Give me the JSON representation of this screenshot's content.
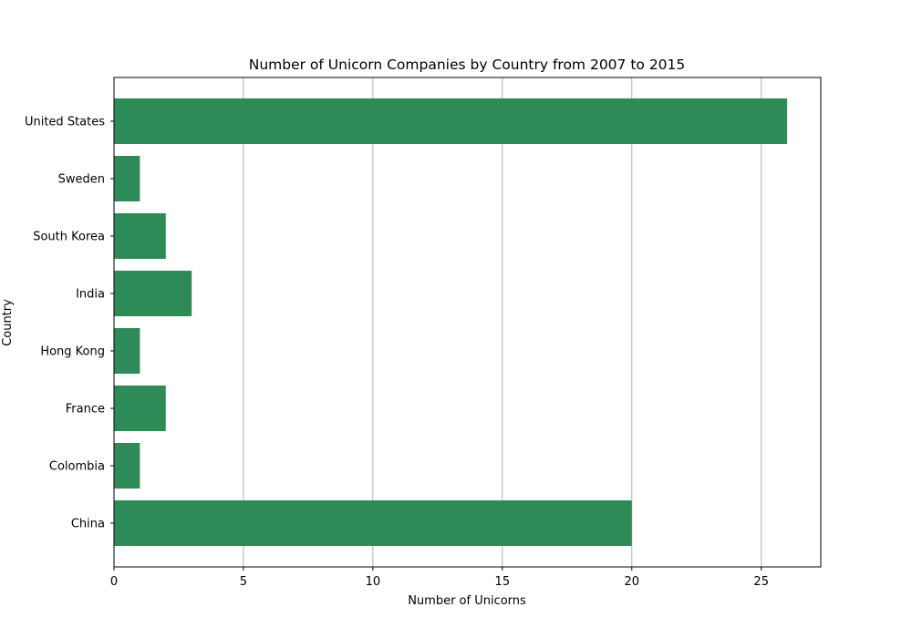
{
  "chart_data": {
    "type": "bar",
    "orientation": "horizontal",
    "title": "Number of Unicorn Companies by Country from 2007 to 2015",
    "xlabel": "Number of Unicorns",
    "ylabel": "Country",
    "categories": [
      "China",
      "Colombia",
      "France",
      "Hong Kong",
      "India",
      "South Korea",
      "Sweden",
      "United States"
    ],
    "values": [
      20,
      1,
      2,
      1,
      3,
      2,
      1,
      26
    ],
    "xlim": [
      0,
      27.3
    ],
    "xticks": [
      0,
      5,
      10,
      15,
      20,
      25
    ],
    "grid": "vertical",
    "bar_color": "#2e8b57"
  }
}
